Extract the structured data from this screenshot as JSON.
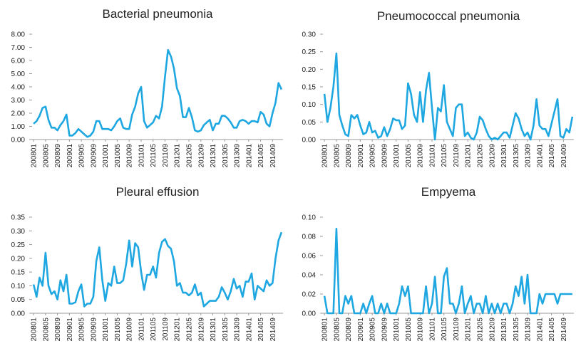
{
  "chart_data": [
    {
      "type": "line",
      "title": "Bacterial pneumonia",
      "color": "#1ea7e1",
      "categories": [
        "200801",
        null,
        null,
        null,
        "200805",
        null,
        null,
        null,
        "200809",
        null,
        null,
        null,
        "200901",
        null,
        null,
        null,
        "200905",
        null,
        null,
        null,
        "200909",
        null,
        null,
        null,
        "201001",
        null,
        null,
        null,
        "201005",
        null,
        null,
        null,
        "201009",
        null,
        null,
        null,
        "201101",
        null,
        null,
        null,
        "201105",
        null,
        null,
        null,
        "201109",
        null,
        null,
        null,
        "201201",
        null,
        null,
        null,
        "201205",
        null,
        null,
        null,
        "201209",
        null,
        null,
        null,
        "201301",
        null,
        null,
        null,
        "201305",
        null,
        null,
        null,
        "201309",
        null,
        null,
        null,
        "201401",
        null,
        null,
        null,
        "201405",
        null,
        null,
        null,
        "201409",
        null,
        null,
        null
      ],
      "values": [
        1.2,
        1.4,
        1.8,
        2.4,
        2.5,
        1.5,
        0.9,
        0.9,
        0.7,
        1.1,
        1.4,
        1.9,
        0.3,
        0.3,
        0.5,
        0.8,
        0.6,
        0.4,
        0.2,
        0.3,
        0.6,
        1.4,
        1.4,
        0.8,
        0.8,
        0.8,
        0.7,
        1.0,
        1.4,
        1.6,
        0.9,
        0.8,
        0.8,
        1.9,
        2.5,
        3.5,
        4.0,
        1.4,
        0.9,
        1.1,
        1.3,
        1.8,
        1.6,
        2.5,
        4.8,
        6.8,
        6.3,
        5.4,
        3.9,
        3.3,
        1.7,
        1.7,
        2.4,
        1.7,
        0.7,
        0.6,
        0.7,
        1.1,
        1.3,
        1.5,
        0.7,
        1.2,
        1.2,
        1.8,
        1.8,
        1.6,
        1.3,
        0.9,
        0.9,
        1.4,
        1.5,
        1.4,
        1.2,
        1.4,
        1.4,
        1.3,
        2.1,
        1.9,
        1.2,
        1.0,
        2.0,
        2.8,
        4.3,
        3.8
      ],
      "ylim": [
        0,
        8
      ],
      "yticks": [
        {
          "value": 0,
          "label": "0.00"
        },
        {
          "value": 1,
          "label": "1.00"
        },
        {
          "value": 2,
          "label": "2.00"
        },
        {
          "value": 3,
          "label": "3.00"
        },
        {
          "value": 4,
          "label": "4.00"
        },
        {
          "value": 5,
          "label": "5.00"
        },
        {
          "value": 6,
          "label": "6.00"
        },
        {
          "value": 7,
          "label": "7.00"
        },
        {
          "value": 8,
          "label": "8.00"
        }
      ]
    },
    {
      "type": "line",
      "title": "Pneumococcal pneumonia",
      "color": "#1ea7e1",
      "categories": [
        "200801",
        null,
        null,
        null,
        "200805",
        null,
        null,
        null,
        "200809",
        null,
        null,
        null,
        "200901",
        null,
        null,
        null,
        "200905",
        null,
        null,
        null,
        "200909",
        null,
        null,
        null,
        "201001",
        null,
        null,
        null,
        "201005",
        null,
        null,
        null,
        "201009",
        null,
        null,
        null,
        "201101",
        null,
        null,
        null,
        "201105",
        null,
        null,
        null,
        "201109",
        null,
        null,
        null,
        "201201",
        null,
        null,
        null,
        "201205",
        null,
        null,
        null,
        "201209",
        null,
        null,
        null,
        "201301",
        null,
        null,
        null,
        "201305",
        null,
        null,
        null,
        "201309",
        null,
        null,
        null,
        "201401",
        null,
        null,
        null,
        "201405",
        null,
        null,
        null,
        "201409",
        null,
        null,
        null
      ],
      "values": [
        0.13,
        0.05,
        0.09,
        0.15,
        0.245,
        0.07,
        0.04,
        0.015,
        0.01,
        0.07,
        0.06,
        0.07,
        0.04,
        0.015,
        0.02,
        0.05,
        0.02,
        0.025,
        0.005,
        0.01,
        0.035,
        0.01,
        0.03,
        0.06,
        0.055,
        0.055,
        0.03,
        0.04,
        0.16,
        0.13,
        0.07,
        0.05,
        0.135,
        0.05,
        0.14,
        0.19,
        0.09,
        0.0,
        0.09,
        0.08,
        0.155,
        0.05,
        0.03,
        0.01,
        0.09,
        0.1,
        0.1,
        0.01,
        0.02,
        0.005,
        0.0,
        0.02,
        0.065,
        0.055,
        0.03,
        0.01,
        0.0,
        0.005,
        0.0,
        0.01,
        0.02,
        0.02,
        0.005,
        0.04,
        0.075,
        0.06,
        0.03,
        0.01,
        0.02,
        0.0,
        0.04,
        0.115,
        0.04,
        0.03,
        0.03,
        0.01,
        0.045,
        0.08,
        0.115,
        0.01,
        0.005,
        0.03,
        0.02,
        0.065
      ],
      "ylim": [
        0,
        0.3
      ],
      "yticks": [
        {
          "value": 0,
          "label": "0.00"
        },
        {
          "value": 0.05,
          "label": "0.05"
        },
        {
          "value": 0.1,
          "label": "0.10"
        },
        {
          "value": 0.15,
          "label": "0.15"
        },
        {
          "value": 0.2,
          "label": "0.20"
        },
        {
          "value": 0.25,
          "label": "0.25"
        },
        {
          "value": 0.3,
          "label": "0.30"
        }
      ]
    },
    {
      "type": "line",
      "title": "Pleural effusion",
      "color": "#1ea7e1",
      "categories": [
        "200801",
        null,
        null,
        null,
        "200805",
        null,
        null,
        null,
        "200809",
        null,
        null,
        null,
        "200901",
        null,
        null,
        null,
        "200905",
        null,
        null,
        null,
        "200909",
        null,
        null,
        null,
        "201001",
        null,
        null,
        null,
        "201005",
        null,
        null,
        null,
        "201009",
        null,
        null,
        null,
        "201101",
        null,
        null,
        null,
        "201105",
        null,
        null,
        null,
        "201109",
        null,
        null,
        null,
        "201201",
        null,
        null,
        null,
        "201205",
        null,
        null,
        null,
        "201209",
        null,
        null,
        null,
        "201301",
        null,
        null,
        null,
        "201305",
        null,
        null,
        null,
        "201309",
        null,
        null,
        null,
        "201401",
        null,
        null,
        null,
        "201405",
        null,
        null,
        null,
        "201409",
        null,
        null,
        null
      ],
      "values": [
        0.105,
        0.06,
        0.13,
        0.1,
        0.22,
        0.1,
        0.07,
        0.08,
        0.05,
        0.12,
        0.08,
        0.14,
        0.035,
        0.035,
        0.04,
        0.08,
        0.105,
        0.025,
        0.035,
        0.035,
        0.06,
        0.19,
        0.24,
        0.12,
        0.045,
        0.11,
        0.1,
        0.17,
        0.11,
        0.11,
        0.12,
        0.18,
        0.265,
        0.17,
        0.255,
        0.24,
        0.15,
        0.085,
        0.14,
        0.14,
        0.17,
        0.13,
        0.22,
        0.26,
        0.27,
        0.245,
        0.235,
        0.19,
        0.1,
        0.11,
        0.075,
        0.075,
        0.065,
        0.075,
        0.105,
        0.065,
        0.075,
        0.025,
        0.035,
        0.045,
        0.045,
        0.045,
        0.06,
        0.095,
        0.075,
        0.05,
        0.08,
        0.125,
        0.09,
        0.1,
        0.06,
        0.115,
        0.115,
        0.145,
        0.05,
        0.1,
        0.09,
        0.08,
        0.12,
        0.1,
        0.11,
        0.2,
        0.265,
        0.295
      ],
      "ylim": [
        0,
        0.35
      ],
      "yticks": [
        {
          "value": 0,
          "label": "0.00"
        },
        {
          "value": 0.05,
          "label": "0.05"
        },
        {
          "value": 0.1,
          "label": "0.10"
        },
        {
          "value": 0.15,
          "label": "0.15"
        },
        {
          "value": 0.2,
          "label": "0.20"
        },
        {
          "value": 0.25,
          "label": "0.25"
        },
        {
          "value": 0.3,
          "label": "0.30"
        },
        {
          "value": 0.35,
          "label": "0.35"
        }
      ]
    },
    {
      "type": "line",
      "title": "Empyema",
      "color": "#1ea7e1",
      "categories": [
        "200801",
        null,
        null,
        null,
        "200805",
        null,
        null,
        null,
        "200809",
        null,
        null,
        null,
        "200901",
        null,
        null,
        null,
        "200905",
        null,
        null,
        null,
        "200909",
        null,
        null,
        null,
        "201001",
        null,
        null,
        null,
        "201005",
        null,
        null,
        null,
        "201009",
        null,
        null,
        null,
        "201101",
        null,
        null,
        null,
        "201105",
        null,
        null,
        null,
        "201109",
        null,
        null,
        null,
        "201201",
        null,
        null,
        null,
        "201205",
        null,
        null,
        null,
        "201209",
        null,
        null,
        null,
        "201301",
        null,
        null,
        null,
        "201305",
        null,
        null,
        null,
        "201309",
        null,
        null,
        null,
        "201401",
        null,
        null,
        null,
        "201405",
        null,
        null,
        null,
        "201409",
        null,
        null,
        null
      ],
      "values": [
        0.018,
        0,
        0,
        0,
        0.088,
        0,
        0,
        0.018,
        0.01,
        0.018,
        0,
        0,
        0,
        0.01,
        0,
        0.01,
        0.018,
        0,
        0,
        0.01,
        0,
        0.01,
        0,
        0,
        0,
        0.01,
        0.028,
        0.018,
        0.028,
        0,
        0,
        0,
        0,
        0,
        0.028,
        0,
        0.01,
        0.038,
        0,
        0,
        0.038,
        0.047,
        0.01,
        0.01,
        0,
        0.01,
        0.028,
        0,
        0.01,
        0.018,
        0,
        0.01,
        0.01,
        0,
        0.018,
        0,
        0.01,
        0,
        0.01,
        0,
        0.01,
        0.01,
        0,
        0.01,
        0.028,
        0.018,
        0.038,
        0.01,
        0.04,
        0,
        0,
        0,
        0.02,
        0.01,
        0.02,
        0.02,
        0.02,
        0.02,
        0.01,
        0.02,
        0.02,
        0.02,
        0.02,
        0.02
      ],
      "ylim": [
        0,
        0.1
      ],
      "yticks": [
        {
          "value": 0,
          "label": "0.00"
        },
        {
          "value": 0.02,
          "label": "0.02"
        },
        {
          "value": 0.04,
          "label": "0.04"
        },
        {
          "value": 0.06,
          "label": "0.06"
        },
        {
          "value": 0.08,
          "label": "0.08"
        },
        {
          "value": 0.1,
          "label": "0.10"
        }
      ]
    }
  ]
}
